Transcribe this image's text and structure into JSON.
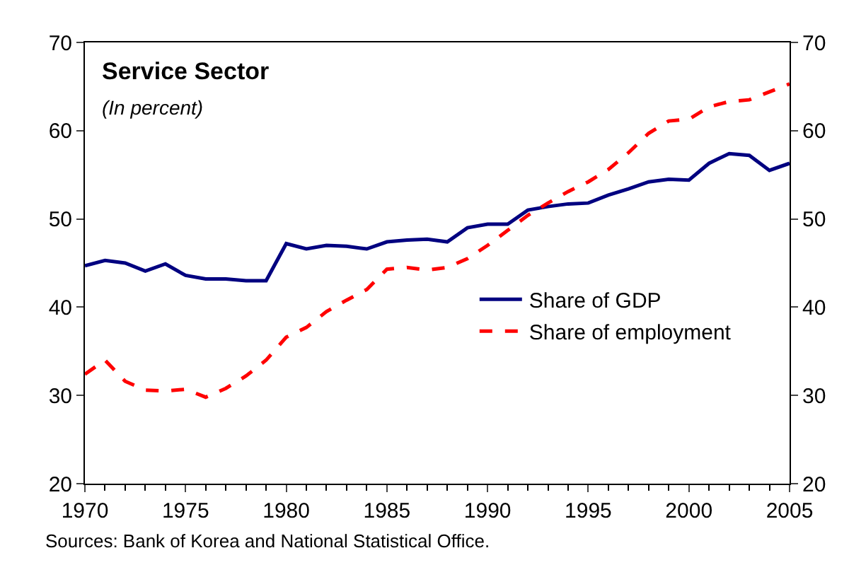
{
  "chart_data": {
    "type": "line",
    "title": "Service Sector",
    "subtitle": "(In percent)",
    "x": [
      1970,
      1971,
      1972,
      1973,
      1974,
      1975,
      1976,
      1977,
      1978,
      1979,
      1980,
      1981,
      1982,
      1983,
      1984,
      1985,
      1986,
      1987,
      1988,
      1989,
      1990,
      1991,
      1992,
      1993,
      1994,
      1995,
      1996,
      1997,
      1998,
      1999,
      2000,
      2001,
      2002,
      2003,
      2004,
      2005
    ],
    "series": [
      {
        "name": "Share of GDP",
        "color": "#000080",
        "line_style": "solid",
        "values": [
          44.7,
          45.3,
          45.0,
          44.1,
          44.9,
          43.6,
          43.2,
          43.2,
          43.0,
          43.0,
          47.2,
          46.6,
          47.0,
          46.9,
          46.6,
          47.4,
          47.6,
          47.7,
          47.4,
          49.0,
          49.4,
          49.4,
          51.0,
          51.4,
          51.7,
          51.8,
          52.7,
          53.4,
          54.2,
          54.5,
          54.4,
          56.3,
          57.4,
          57.2,
          55.5,
          56.3
        ]
      },
      {
        "name": "Share of employment",
        "color": "#ff0000",
        "line_style": "dashed",
        "values": [
          32.4,
          34.0,
          31.6,
          30.6,
          30.5,
          30.7,
          29.8,
          30.8,
          32.2,
          34.0,
          36.6,
          37.7,
          39.5,
          40.8,
          42.0,
          44.3,
          44.5,
          44.2,
          44.5,
          45.5,
          47.0,
          48.7,
          50.4,
          51.8,
          53.1,
          54.2,
          55.6,
          57.5,
          59.7,
          61.1,
          61.3,
          62.7,
          63.3,
          63.5,
          64.4,
          65.3
        ]
      }
    ],
    "xlim": [
      1970,
      2005
    ],
    "xticks": [
      1970,
      1975,
      1980,
      1985,
      1990,
      1995,
      2000,
      2005
    ],
    "ylim": [
      20,
      70
    ],
    "yticks": [
      20,
      30,
      40,
      50,
      60,
      70
    ],
    "y2lim": [
      20,
      70
    ],
    "y2ticks": [
      20,
      30,
      40,
      50,
      60,
      70
    ],
    "legend": "right",
    "marker": "none",
    "annotations": [
      "Sources: Bank of Korea and National Statistical Office."
    ]
  }
}
